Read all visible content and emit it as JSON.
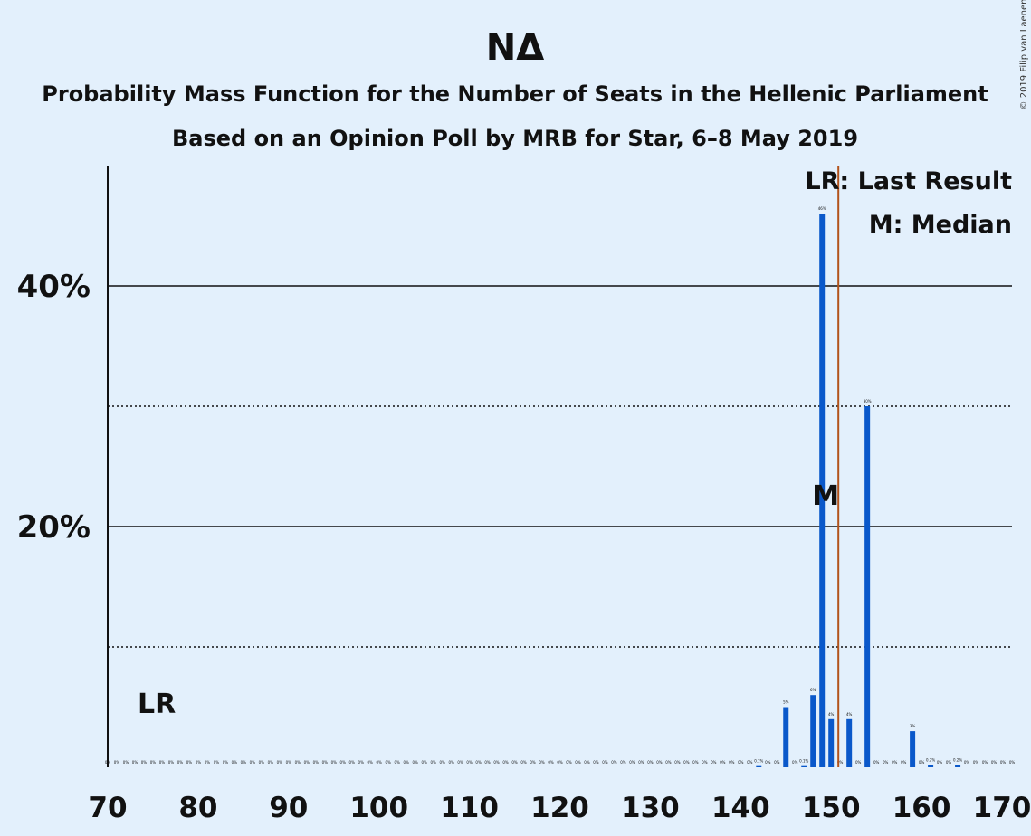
{
  "chart_data": {
    "type": "bar",
    "title": "ΝΔ",
    "subtitle1": "Probability Mass Function for the Number of Seats in the Hellenic Parliament",
    "subtitle2": "Based on an Opinion Poll by MRB for Star, 6–8 May 2019",
    "copyright": "© 2019 Filip van Laenen",
    "xlim": [
      70,
      170
    ],
    "ylim": [
      0,
      50
    ],
    "x_ticks": [
      70,
      80,
      90,
      100,
      110,
      120,
      130,
      140,
      150,
      160,
      170
    ],
    "y_ticks": [
      {
        "value": 10,
        "label": "",
        "style": "dotted"
      },
      {
        "value": 20,
        "label": "20%",
        "style": "solid"
      },
      {
        "value": 30,
        "label": "",
        "style": "dotted"
      },
      {
        "value": 40,
        "label": "40%",
        "style": "solid"
      }
    ],
    "bar_color": "#0a58ca",
    "last_result_line_color": "#b2531b",
    "series": [
      {
        "x": [
          70,
          71,
          72,
          73,
          74,
          75,
          76,
          77,
          78,
          79,
          80,
          81,
          82,
          83,
          84,
          85,
          86,
          87,
          88,
          89,
          90,
          91,
          92,
          93,
          94,
          95,
          96,
          97,
          98,
          99,
          100,
          101,
          102,
          103,
          104,
          105,
          106,
          107,
          108,
          109,
          110,
          111,
          112,
          113,
          114,
          115,
          116,
          117,
          118,
          119,
          120,
          121,
          122,
          123,
          124,
          125,
          126,
          127,
          128,
          129,
          130,
          131,
          132,
          133,
          134,
          135,
          136,
          137,
          138,
          139,
          140,
          141,
          142,
          143,
          144,
          145,
          146,
          147,
          148,
          149,
          150,
          151,
          152,
          153,
          154,
          155,
          156,
          157,
          158,
          159,
          160,
          161,
          162,
          163,
          164,
          165,
          166,
          167,
          168,
          169,
          170
        ],
        "values": [
          0,
          0,
          0,
          0,
          0,
          0,
          0,
          0,
          0,
          0,
          0,
          0,
          0,
          0,
          0,
          0,
          0,
          0,
          0,
          0,
          0,
          0,
          0,
          0,
          0,
          0,
          0,
          0,
          0,
          0,
          0,
          0,
          0,
          0,
          0,
          0,
          0,
          0,
          0,
          0,
          0,
          0,
          0,
          0,
          0,
          0,
          0,
          0,
          0,
          0,
          0,
          0,
          0,
          0,
          0,
          0,
          0,
          0,
          0,
          0,
          0,
          0,
          0,
          0,
          0,
          0,
          0,
          0,
          0,
          0,
          0,
          0,
          0.1,
          0,
          0,
          5,
          0,
          0.1,
          6,
          46,
          4,
          0,
          4,
          0,
          30,
          0,
          0,
          0,
          0,
          3,
          0,
          0.2,
          0,
          0,
          0.2,
          0,
          0,
          0,
          0,
          0,
          0
        ],
        "labels": [
          "0%",
          "0%",
          "0%",
          "0%",
          "0%",
          "0%",
          "0%",
          "0%",
          "0%",
          "0%",
          "0%",
          "0%",
          "0%",
          "0%",
          "0%",
          "0%",
          "0%",
          "0%",
          "0%",
          "0%",
          "0%",
          "0%",
          "0%",
          "0%",
          "0%",
          "0%",
          "0%",
          "0%",
          "0%",
          "0%",
          "0%",
          "0%",
          "0%",
          "0%",
          "0%",
          "0%",
          "0%",
          "0%",
          "0%",
          "0%",
          "0%",
          "0%",
          "0%",
          "0%",
          "0%",
          "0%",
          "0%",
          "0%",
          "0%",
          "0%",
          "0%",
          "0%",
          "0%",
          "0%",
          "0%",
          "0%",
          "0%",
          "0%",
          "0%",
          "0%",
          "0%",
          "0%",
          "0%",
          "0%",
          "0%",
          "0%",
          "0%",
          "0%",
          "0%",
          "0%",
          "0%",
          "0%",
          "0.1%",
          "0%",
          "0%",
          "5%",
          "0%",
          "0.1%",
          "6%",
          "46%",
          "4%",
          "0%",
          "4%",
          "0%",
          "30%",
          "0%",
          "0%",
          "0%",
          "0%",
          "3%",
          "0%",
          "0.2%",
          "0%",
          "0%",
          "0.2%",
          "0%",
          "0%",
          "0%",
          "0%",
          "0%",
          "0%"
        ]
      }
    ],
    "last_result": {
      "x": 151,
      "label": "LR"
    },
    "median": {
      "x": 149,
      "label": "M"
    },
    "legend": [
      "LR: Last Result",
      "M: Median"
    ]
  }
}
